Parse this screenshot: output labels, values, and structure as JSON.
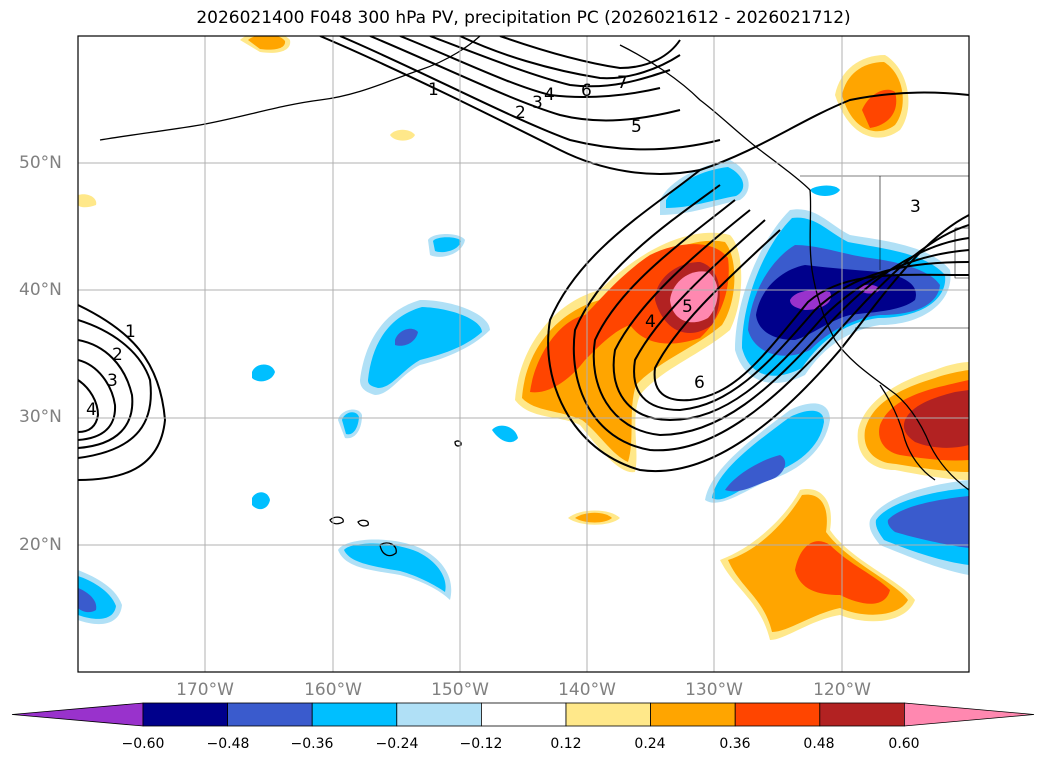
{
  "title": "2026021400 F048 300 hPa PV, precipitation PC (2026021612 - 2026021712)",
  "map": {
    "projection": "lat-lon",
    "lon_range": [
      -180,
      -110
    ],
    "lat_range": [
      10,
      60
    ],
    "grid": true,
    "lat_labels": [
      "50°N",
      "40°N",
      "30°N",
      "20°N"
    ],
    "lon_labels": [
      "170°W",
      "160°W",
      "150°W",
      "140°W",
      "130°W",
      "120°W"
    ],
    "contour_labels": [
      "1",
      "2",
      "3",
      "4",
      "5",
      "6",
      "7",
      "1",
      "2",
      "3",
      "4",
      "5",
      "6",
      "3",
      "4"
    ]
  },
  "colorbar": {
    "ticks": [
      "−0.60",
      "−0.48",
      "−0.36",
      "−0.24",
      "−0.12",
      "0.12",
      "0.24",
      "0.36",
      "0.48",
      "0.60"
    ],
    "colors": [
      "#9932cc",
      "#00008b",
      "#3a5bcd",
      "#00bfff",
      "#b0e0f6",
      "#ffffff",
      "#ffe88a",
      "#ffa500",
      "#ff4500",
      "#b22222",
      "#ff88b0"
    ],
    "extend": "both"
  }
}
